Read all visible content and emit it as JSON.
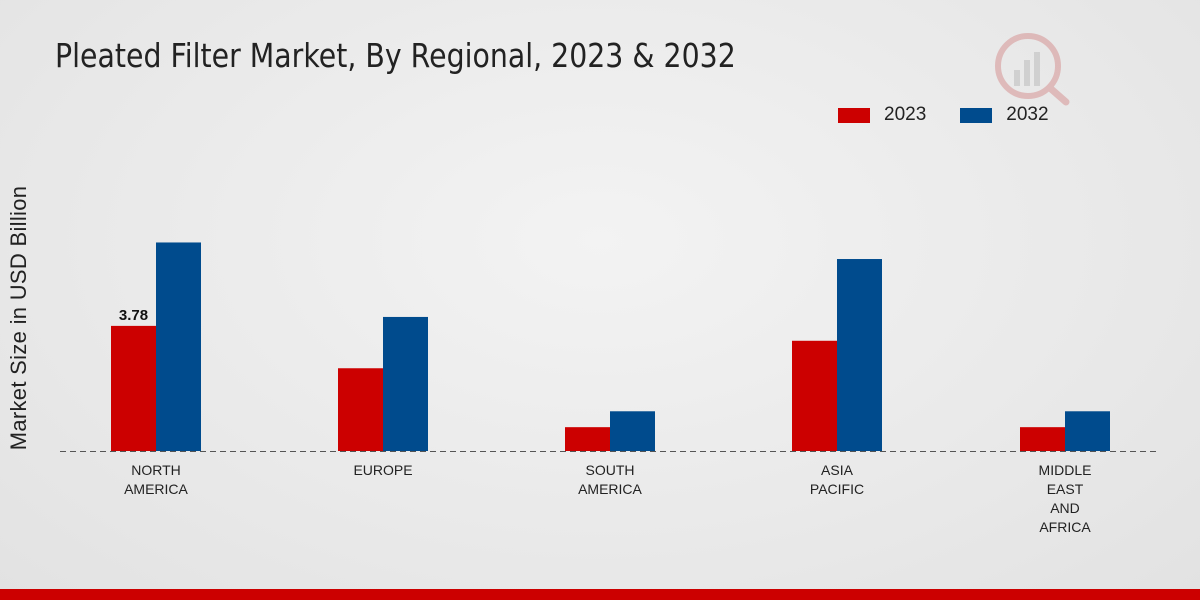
{
  "chart_data": {
    "type": "bar",
    "title": "Pleated Filter Market, By Regional, 2023 & 2032",
    "xlabel": "",
    "ylabel": "Market Size in USD Billion",
    "categories": [
      [
        "NORTH",
        "AMERICA"
      ],
      [
        "EUROPE"
      ],
      [
        "SOUTH",
        "AMERICA"
      ],
      [
        "ASIA",
        "PACIFIC"
      ],
      [
        "MIDDLE",
        "EAST",
        "AND",
        "AFRICA"
      ]
    ],
    "series": [
      {
        "name": "2023",
        "color": "#cc0000",
        "values": [
          3.78,
          2.5,
          0.72,
          3.33,
          0.72
        ]
      },
      {
        "name": "2032",
        "color": "#004b8d",
        "values": [
          6.3,
          4.05,
          1.2,
          5.8,
          1.2
        ]
      }
    ],
    "data_labels": [
      {
        "series": 0,
        "index": 0,
        "text": "3.78"
      }
    ],
    "ylim": [
      0,
      10
    ],
    "baseline": "dashed",
    "legend_position": "top-right"
  }
}
